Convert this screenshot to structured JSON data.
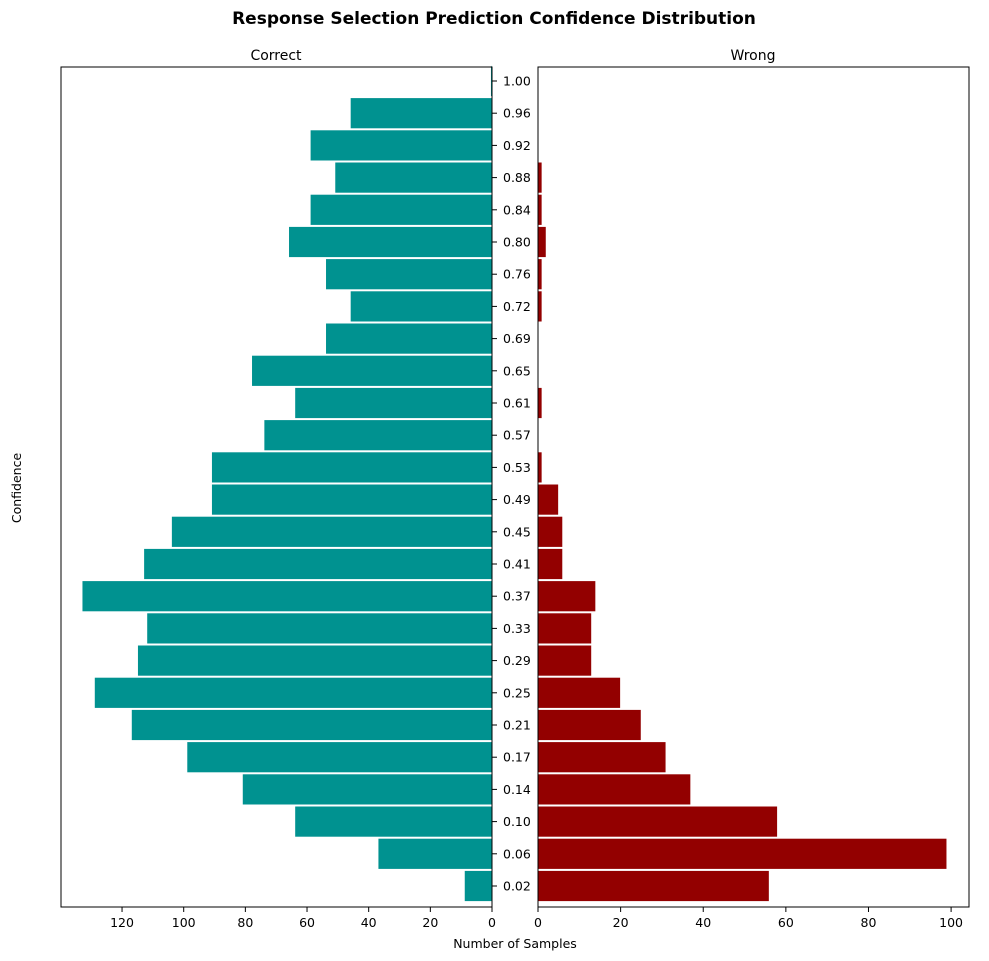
{
  "title": "Response Selection Prediction Confidence Distribution",
  "ylabel": "Confidence",
  "xlabel": "Number of Samples",
  "colors": {
    "correct": "#009290",
    "wrong": "#930000",
    "bar_edge": "#ffffff",
    "axis": "#000000"
  },
  "chart_data": [
    {
      "type": "bar",
      "orientation": "horizontal",
      "direction": "right-to-left",
      "subtitle": "Correct",
      "categories": [
        "0.02",
        "0.06",
        "0.10",
        "0.14",
        "0.17",
        "0.21",
        "0.25",
        "0.29",
        "0.33",
        "0.37",
        "0.41",
        "0.45",
        "0.49",
        "0.53",
        "0.57",
        "0.61",
        "0.65",
        "0.69",
        "0.72",
        "0.76",
        "0.80",
        "0.84",
        "0.88",
        "0.92",
        "0.96",
        "1.00"
      ],
      "values": [
        9,
        37,
        64,
        81,
        99,
        117,
        129,
        115,
        112,
        133,
        113,
        104,
        91,
        91,
        74,
        64,
        78,
        54,
        46,
        54,
        66,
        59,
        51,
        59,
        46,
        0.5
      ],
      "xticks": [
        120,
        100,
        80,
        60,
        40,
        20,
        0
      ],
      "xlim": [
        140,
        0
      ]
    },
    {
      "type": "bar",
      "orientation": "horizontal",
      "direction": "left-to-right",
      "subtitle": "Wrong",
      "categories": [
        "0.02",
        "0.06",
        "0.10",
        "0.14",
        "0.17",
        "0.21",
        "0.25",
        "0.29",
        "0.33",
        "0.37",
        "0.41",
        "0.45",
        "0.49",
        "0.53",
        "0.57",
        "0.61",
        "0.65",
        "0.69",
        "0.72",
        "0.76",
        "0.80",
        "0.84",
        "0.88",
        "0.92",
        "0.96",
        "1.00"
      ],
      "values": [
        56,
        99,
        58,
        37,
        31,
        25,
        20,
        13,
        13,
        14,
        6,
        6,
        5,
        1,
        0,
        1,
        0,
        0,
        1,
        1,
        2,
        1,
        1,
        0,
        0,
        0
      ],
      "xticks": [
        0,
        20,
        40,
        60,
        80,
        100
      ],
      "xlim": [
        0,
        104
      ]
    }
  ]
}
